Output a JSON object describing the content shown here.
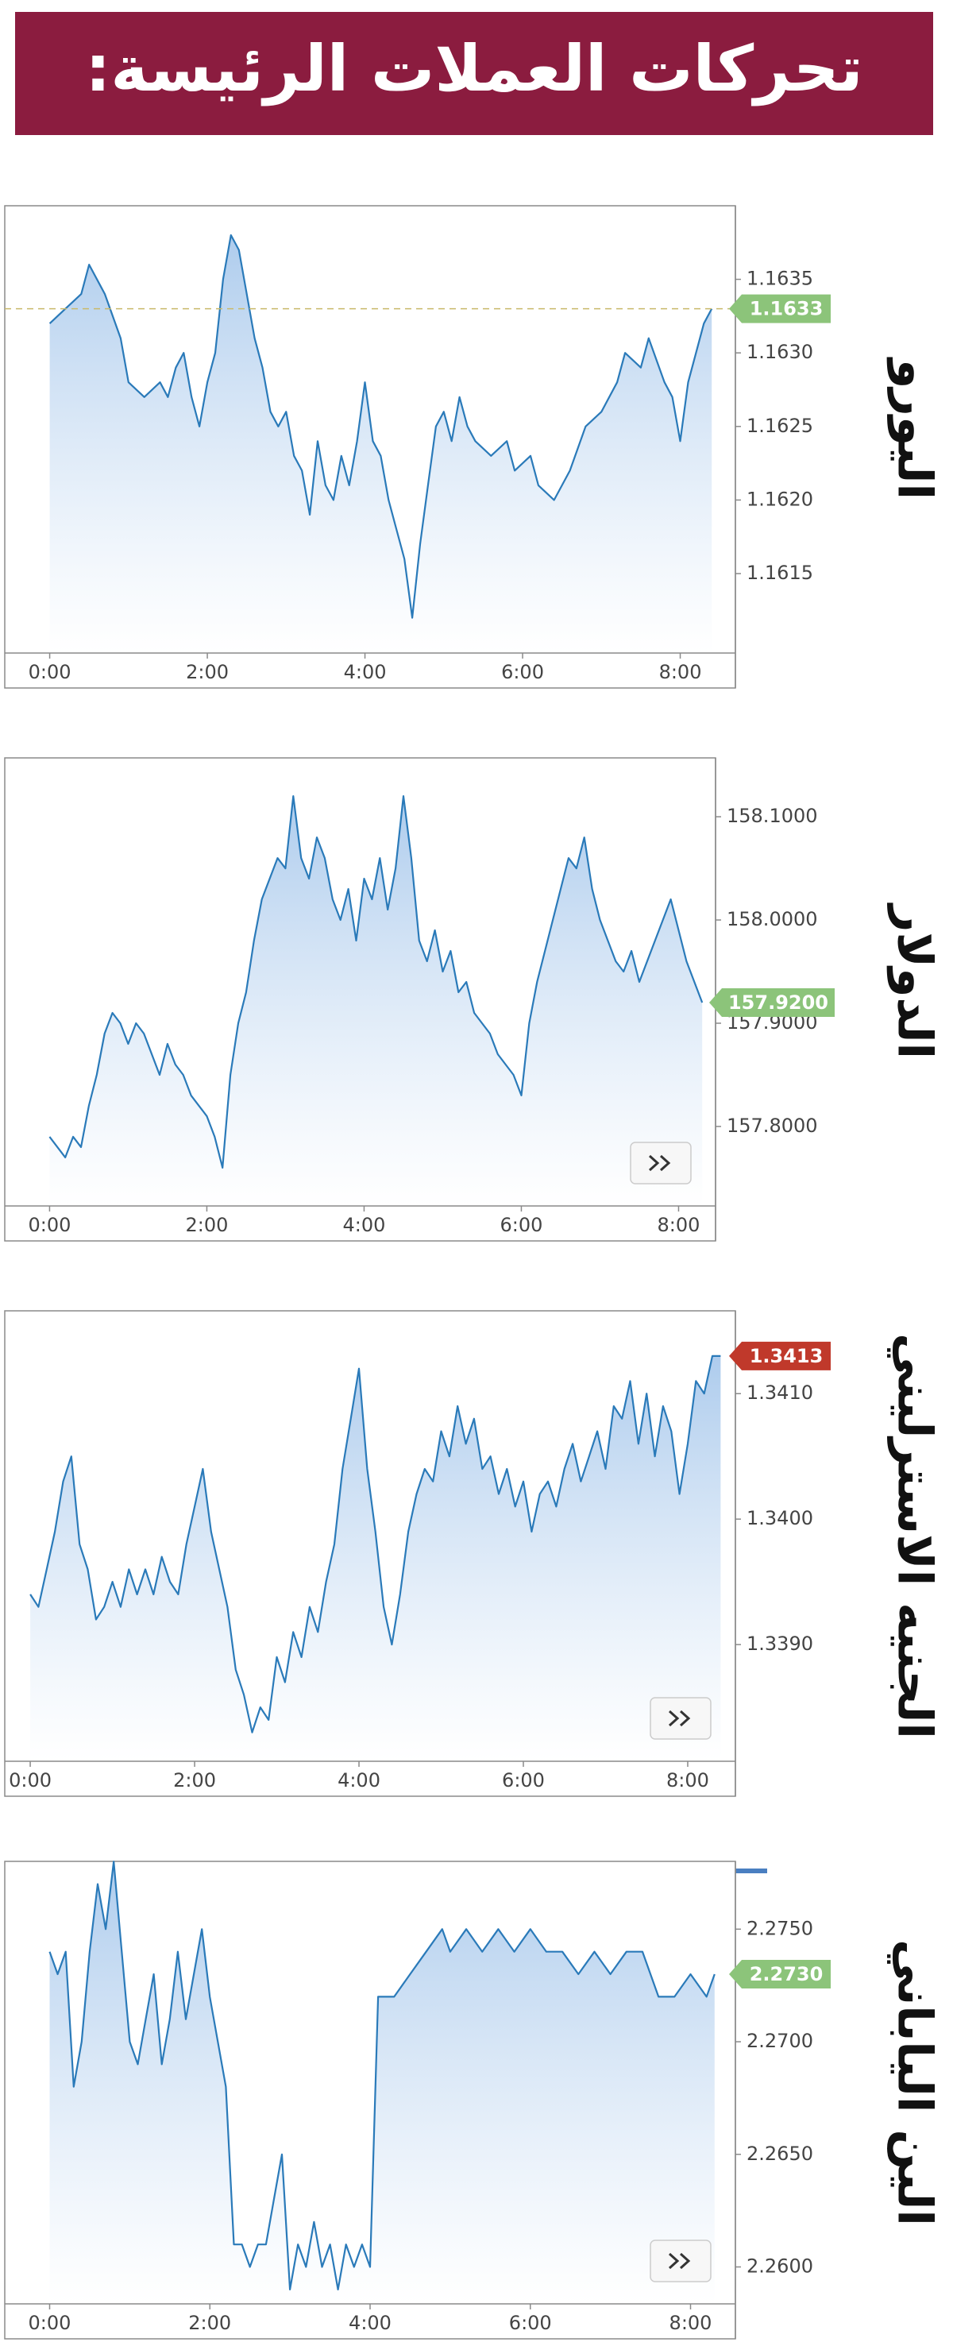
{
  "header": {
    "title": "تحركات العملات الرئيسة:"
  },
  "chart_data": [
    {
      "type": "area",
      "title": "اليورو",
      "color": "#2a7ab9",
      "x": [
        0,
        0.2,
        0.4,
        0.5,
        0.7,
        0.9,
        1.0,
        1.2,
        1.4,
        1.5,
        1.6,
        1.7,
        1.8,
        1.9,
        2.0,
        2.1,
        2.2,
        2.3,
        2.4,
        2.5,
        2.6,
        2.7,
        2.8,
        2.9,
        3.0,
        3.1,
        3.2,
        3.3,
        3.4,
        3.5,
        3.6,
        3.7,
        3.8,
        3.9,
        4.0,
        4.1,
        4.2,
        4.3,
        4.4,
        4.5,
        4.6,
        4.7,
        4.8,
        4.9,
        5.0,
        5.1,
        5.2,
        5.3,
        5.4,
        5.6,
        5.8,
        5.9,
        6.1,
        6.2,
        6.4,
        6.6,
        6.8,
        7.0,
        7.2,
        7.3,
        7.5,
        7.6,
        7.8,
        7.9,
        8.0,
        8.1,
        8.2,
        8.3,
        8.4
      ],
      "values": [
        1.1632,
        1.1633,
        1.1634,
        1.1636,
        1.1634,
        1.1631,
        1.1628,
        1.1627,
        1.1628,
        1.1627,
        1.1629,
        1.163,
        1.1627,
        1.1625,
        1.1628,
        1.163,
        1.1635,
        1.1638,
        1.1637,
        1.1634,
        1.1631,
        1.1629,
        1.1626,
        1.1625,
        1.1626,
        1.1623,
        1.1622,
        1.1619,
        1.1624,
        1.1621,
        1.162,
        1.1623,
        1.1621,
        1.1624,
        1.1628,
        1.1624,
        1.1623,
        1.162,
        1.1618,
        1.1616,
        1.1612,
        1.1617,
        1.1621,
        1.1625,
        1.1626,
        1.1624,
        1.1627,
        1.1625,
        1.1624,
        1.1623,
        1.1624,
        1.1622,
        1.1623,
        1.1621,
        1.162,
        1.1622,
        1.1625,
        1.1626,
        1.1628,
        1.163,
        1.1629,
        1.1631,
        1.1628,
        1.1627,
        1.1624,
        1.1628,
        1.163,
        1.1632,
        1.1633
      ],
      "xlim": [
        -0.57,
        8.7
      ],
      "ylim": [
        1.16096,
        1.164
      ],
      "xticks": [
        {
          "value": 0,
          "label": "0:00"
        },
        {
          "value": 2,
          "label": "2:00"
        },
        {
          "value": 4,
          "label": "4:00"
        },
        {
          "value": 6,
          "label": "6:00"
        },
        {
          "value": 8,
          "label": "8:00"
        }
      ],
      "yticks": [
        1.1635,
        {
          "value": 1.163,
          "label": "1.1630"
        },
        1.1625,
        {
          "value": 1.162,
          "label": "1.1620"
        },
        1.1615
      ],
      "marker": {
        "value": 1.1633,
        "label": "1.1633",
        "color": "#8cc47a"
      },
      "reference_line": true,
      "scroll_button": false
    },
    {
      "type": "area",
      "title": "الدولار",
      "color": "#2a7ab9",
      "x": [
        0,
        0.1,
        0.2,
        0.3,
        0.4,
        0.5,
        0.6,
        0.7,
        0.8,
        0.9,
        1.0,
        1.1,
        1.2,
        1.3,
        1.4,
        1.5,
        1.6,
        1.7,
        1.8,
        1.9,
        2.0,
        2.1,
        2.2,
        2.3,
        2.4,
        2.5,
        2.6,
        2.7,
        2.8,
        2.9,
        3.0,
        3.1,
        3.2,
        3.3,
        3.4,
        3.5,
        3.6,
        3.7,
        3.8,
        3.9,
        4.0,
        4.1,
        4.2,
        4.3,
        4.4,
        4.5,
        4.6,
        4.7,
        4.8,
        4.9,
        5.0,
        5.1,
        5.2,
        5.3,
        5.4,
        5.5,
        5.6,
        5.7,
        5.8,
        5.9,
        6.0,
        6.1,
        6.2,
        6.3,
        6.4,
        6.5,
        6.6,
        6.7,
        6.8,
        6.9,
        7.0,
        7.1,
        7.2,
        7.3,
        7.4,
        7.5,
        7.6,
        7.7,
        7.8,
        7.9,
        8.0,
        8.1,
        8.2,
        8.3
      ],
      "values": [
        157.79,
        157.78,
        157.77,
        157.79,
        157.78,
        157.82,
        157.85,
        157.89,
        157.91,
        157.9,
        157.88,
        157.9,
        157.89,
        157.87,
        157.85,
        157.88,
        157.86,
        157.85,
        157.83,
        157.82,
        157.81,
        157.79,
        157.76,
        157.85,
        157.9,
        157.93,
        157.98,
        158.02,
        158.04,
        158.06,
        158.05,
        158.12,
        158.06,
        158.04,
        158.08,
        158.06,
        158.02,
        158.0,
        158.03,
        157.98,
        158.04,
        158.02,
        158.06,
        158.01,
        158.05,
        158.12,
        158.06,
        157.98,
        157.96,
        157.99,
        157.95,
        157.97,
        157.93,
        157.94,
        157.91,
        157.9,
        157.89,
        157.87,
        157.86,
        157.85,
        157.83,
        157.9,
        157.94,
        157.97,
        158.0,
        158.03,
        158.06,
        158.05,
        158.08,
        158.03,
        158.0,
        157.98,
        157.96,
        157.95,
        157.97,
        157.94,
        157.96,
        157.98,
        158.0,
        158.02,
        157.99,
        157.96,
        157.94,
        157.92
      ],
      "xlim": [
        -0.57,
        8.47
      ],
      "ylim": [
        157.723,
        158.157
      ],
      "xticks": [
        {
          "value": 0,
          "label": "0:00"
        },
        {
          "value": 2,
          "label": "2:00"
        },
        {
          "value": 4,
          "label": "4:00"
        },
        {
          "value": 6,
          "label": "6:00"
        },
        {
          "value": 8,
          "label": "8:00"
        }
      ],
      "yticks": [
        {
          "value": 158.1,
          "label": "158.1000"
        },
        {
          "value": 158,
          "label": "158.0000"
        },
        {
          "value": 157.9,
          "label": "157.9000"
        },
        {
          "value": 157.8,
          "label": "157.8000"
        }
      ],
      "marker": {
        "value": 157.92,
        "label": "157.9200",
        "color": "#8cc47a"
      },
      "reference_line": false,
      "scroll_button": true
    },
    {
      "type": "area",
      "title": "الجنيه الاسترليني",
      "color": "#2a7ab9",
      "x": [
        0,
        0.1,
        0.2,
        0.3,
        0.4,
        0.5,
        0.6,
        0.7,
        0.8,
        0.9,
        1.0,
        1.1,
        1.2,
        1.3,
        1.4,
        1.5,
        1.6,
        1.7,
        1.8,
        1.9,
        2.0,
        2.1,
        2.2,
        2.3,
        2.4,
        2.5,
        2.6,
        2.7,
        2.8,
        2.9,
        3.0,
        3.1,
        3.2,
        3.3,
        3.4,
        3.5,
        3.6,
        3.7,
        3.8,
        3.9,
        4.0,
        4.1,
        4.2,
        4.3,
        4.4,
        4.5,
        4.6,
        4.7,
        4.8,
        4.9,
        5.0,
        5.1,
        5.2,
        5.3,
        5.4,
        5.5,
        5.6,
        5.7,
        5.8,
        5.9,
        6.0,
        6.1,
        6.2,
        6.3,
        6.4,
        6.5,
        6.6,
        6.7,
        6.8,
        6.9,
        7.0,
        7.1,
        7.2,
        7.3,
        7.4,
        7.5,
        7.6,
        7.7,
        7.8,
        7.9,
        8.0,
        8.1,
        8.2,
        8.3,
        8.4
      ],
      "values": [
        1.3394,
        1.3393,
        1.3396,
        1.3399,
        1.3403,
        1.3405,
        1.3398,
        1.3396,
        1.3392,
        1.3393,
        1.3395,
        1.3393,
        1.3396,
        1.3394,
        1.3396,
        1.3394,
        1.3397,
        1.3395,
        1.3394,
        1.3398,
        1.3401,
        1.3404,
        1.3399,
        1.3396,
        1.3393,
        1.3388,
        1.3386,
        1.3383,
        1.3385,
        1.3384,
        1.3389,
        1.3387,
        1.3391,
        1.3389,
        1.3393,
        1.3391,
        1.3395,
        1.3398,
        1.3404,
        1.3408,
        1.3412,
        1.3404,
        1.3399,
        1.3393,
        1.339,
        1.3394,
        1.3399,
        1.3402,
        1.3404,
        1.3403,
        1.3407,
        1.3405,
        1.3409,
        1.3406,
        1.3408,
        1.3404,
        1.3405,
        1.3402,
        1.3404,
        1.3401,
        1.3403,
        1.3399,
        1.3402,
        1.3403,
        1.3401,
        1.3404,
        1.3406,
        1.3403,
        1.3405,
        1.3407,
        1.3404,
        1.3409,
        1.3408,
        1.3411,
        1.3406,
        1.341,
        1.3405,
        1.3409,
        1.3407,
        1.3402,
        1.3406,
        1.3411,
        1.341,
        1.3413,
        1.3413
      ],
      "xlim": [
        -0.31,
        8.58
      ],
      "ylim": [
        1.33807,
        1.34166
      ],
      "xticks": [
        {
          "value": 0,
          "label": "0:00"
        },
        {
          "value": 2,
          "label": "2:00"
        },
        {
          "value": 4,
          "label": "4:00"
        },
        {
          "value": 6,
          "label": "6:00"
        },
        {
          "value": 8,
          "label": "8:00"
        }
      ],
      "yticks": [
        {
          "value": 1.341,
          "label": "1.3410"
        },
        {
          "value": 1.34,
          "label": "1.3400"
        },
        {
          "value": 1.339,
          "label": "1.3390"
        }
      ],
      "marker": {
        "value": 1.3413,
        "label": "1.3413",
        "color": "#c0392b"
      },
      "reference_line": false,
      "scroll_button": true
    },
    {
      "type": "area",
      "title": "الين الياباني",
      "color": "#2a7ab9",
      "x": [
        0,
        0.1,
        0.2,
        0.3,
        0.4,
        0.5,
        0.6,
        0.7,
        0.8,
        0.9,
        1.0,
        1.1,
        1.2,
        1.3,
        1.4,
        1.5,
        1.6,
        1.7,
        1.8,
        1.9,
        2.0,
        2.1,
        2.2,
        2.3,
        2.4,
        2.5,
        2.6,
        2.7,
        2.8,
        2.9,
        3.0,
        3.1,
        3.2,
        3.3,
        3.4,
        3.5,
        3.6,
        3.7,
        3.8,
        3.9,
        4.0,
        4.1,
        4.3,
        4.5,
        4.7,
        4.9,
        5.0,
        5.2,
        5.4,
        5.6,
        5.8,
        6.0,
        6.2,
        6.4,
        6.6,
        6.8,
        7.0,
        7.2,
        7.4,
        7.6,
        7.8,
        8.0,
        8.2,
        8.3
      ],
      "values": [
        2.274,
        2.273,
        2.274,
        2.268,
        2.27,
        2.274,
        2.277,
        2.275,
        2.278,
        2.274,
        2.27,
        2.269,
        2.271,
        2.273,
        2.269,
        2.271,
        2.274,
        2.271,
        2.273,
        2.275,
        2.272,
        2.27,
        2.268,
        2.261,
        2.261,
        2.26,
        2.261,
        2.261,
        2.263,
        2.265,
        2.259,
        2.261,
        2.26,
        2.262,
        2.26,
        2.261,
        2.259,
        2.261,
        2.26,
        2.261,
        2.26,
        2.272,
        2.272,
        2.273,
        2.274,
        2.275,
        2.274,
        2.275,
        2.274,
        2.275,
        2.274,
        2.275,
        2.274,
        2.274,
        2.273,
        2.274,
        2.273,
        2.274,
        2.274,
        2.272,
        2.272,
        2.273,
        2.272,
        2.273
      ],
      "xlim": [
        -0.56,
        8.56
      ],
      "ylim": [
        2.25836,
        2.27801
      ],
      "xticks": [
        {
          "value": 0,
          "label": "0:00"
        },
        {
          "value": 2,
          "label": "2:00"
        },
        {
          "value": 4,
          "label": "4:00"
        },
        {
          "value": 6,
          "label": "6:00"
        },
        {
          "value": 8,
          "label": "8:00"
        }
      ],
      "yticks": [
        {
          "value": 2.275,
          "label": "2.2750"
        },
        {
          "value": 2.27,
          "label": "2.2700"
        },
        {
          "value": 2.265,
          "label": "2.2650"
        },
        {
          "value": 2.26,
          "label": "2.2600"
        }
      ],
      "marker": {
        "value": 2.273,
        "label": "2.2730",
        "color": "#8cc47a"
      },
      "reference_line": false,
      "scroll_button": true
    }
  ]
}
